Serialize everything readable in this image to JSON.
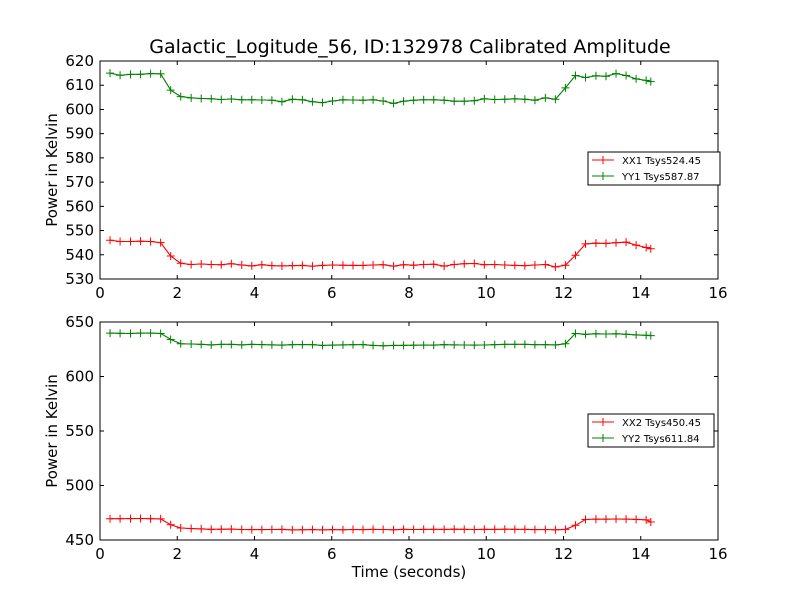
{
  "figure": {
    "title": "Galactic_Logitude_56, ID:132978 Calibrated Amplitude"
  },
  "chart_data": [
    {
      "type": "line",
      "title": "Galactic_Logitude_56, ID:132978 Calibrated Amplitude",
      "xlabel": "",
      "ylabel": "Power in Kelvin",
      "xlim": [
        0,
        16
      ],
      "ylim": [
        530,
        620
      ],
      "xticks": [
        0,
        2,
        4,
        6,
        8,
        10,
        12,
        14,
        16
      ],
      "yticks": [
        530,
        540,
        550,
        560,
        570,
        580,
        590,
        600,
        610,
        620
      ],
      "grid": false,
      "legend_position": "center-right",
      "x": [
        0.26,
        0.52,
        0.79,
        1.05,
        1.31,
        1.57,
        1.83,
        2.09,
        2.36,
        2.62,
        2.88,
        3.14,
        3.4,
        3.67,
        3.93,
        4.19,
        4.45,
        4.71,
        4.98,
        5.24,
        5.5,
        5.76,
        6.02,
        6.29,
        6.55,
        6.81,
        7.07,
        7.33,
        7.6,
        7.86,
        8.12,
        8.38,
        8.64,
        8.91,
        9.17,
        9.43,
        9.69,
        9.95,
        10.22,
        10.48,
        10.74,
        11.0,
        11.26,
        11.53,
        11.79,
        12.05,
        12.31,
        12.57,
        12.84,
        13.1,
        13.36,
        13.62,
        13.88,
        14.14,
        14.26
      ],
      "series": [
        {
          "name": "XX1 Tsys524.45",
          "color": "#ff0000",
          "values": [
            546,
            545.5,
            545.5,
            545.6,
            545.5,
            545,
            539.5,
            536.5,
            536,
            536.2,
            536,
            535.9,
            536.3,
            535.8,
            535.4,
            535.9,
            535.5,
            535.4,
            535.5,
            535.6,
            535.3,
            535.6,
            535.8,
            535.7,
            535.6,
            535.6,
            535.8,
            535.9,
            535.3,
            535.9,
            535.7,
            536,
            536.1,
            535.3,
            536,
            536.3,
            536.4,
            535.9,
            536,
            535.8,
            535.6,
            535.5,
            535.8,
            536,
            535,
            535.7,
            539.8,
            544.5,
            544.8,
            544.7,
            545,
            545.2,
            544,
            543,
            542.5
          ]
        },
        {
          "name": "YY1 Tsys587.87",
          "color": "#008000",
          "values": [
            615,
            614.1,
            614.5,
            614.5,
            614.8,
            614.7,
            608,
            605.3,
            604.8,
            604.5,
            604.4,
            604.1,
            604.3,
            604,
            604,
            603.9,
            603.8,
            603.2,
            604.2,
            604,
            603.2,
            602.8,
            603.5,
            604,
            603.9,
            603.8,
            604,
            603.5,
            602.5,
            603.4,
            603.8,
            604,
            604,
            603.8,
            603.4,
            603.4,
            603.6,
            604.4,
            604.1,
            604.2,
            604.4,
            604.2,
            603.8,
            604.8,
            604.2,
            608.9,
            614,
            613.2,
            613.9,
            613.7,
            614.8,
            614,
            612.6,
            612,
            611.5
          ]
        }
      ]
    },
    {
      "type": "line",
      "title": "",
      "xlabel": "Time (seconds)",
      "ylabel": "Power in Kelvin",
      "xlim": [
        0,
        16
      ],
      "ylim": [
        450,
        650
      ],
      "xticks": [
        0,
        2,
        4,
        6,
        8,
        10,
        12,
        14,
        16
      ],
      "yticks": [
        450,
        500,
        550,
        600,
        650
      ],
      "grid": false,
      "legend_position": "center-right",
      "x": [
        0.26,
        0.52,
        0.79,
        1.05,
        1.31,
        1.57,
        1.83,
        2.09,
        2.36,
        2.62,
        2.88,
        3.14,
        3.4,
        3.67,
        3.93,
        4.19,
        4.45,
        4.71,
        4.98,
        5.24,
        5.5,
        5.76,
        6.02,
        6.29,
        6.55,
        6.81,
        7.07,
        7.33,
        7.6,
        7.86,
        8.12,
        8.38,
        8.64,
        8.91,
        9.17,
        9.43,
        9.69,
        9.95,
        10.22,
        10.48,
        10.74,
        11.0,
        11.26,
        11.53,
        11.79,
        12.05,
        12.31,
        12.57,
        12.84,
        13.1,
        13.36,
        13.62,
        13.88,
        14.14,
        14.26
      ],
      "series": [
        {
          "name": "XX2 Tsys450.45",
          "color": "#ff0000",
          "values": [
            469.5,
            469.5,
            469.6,
            469.7,
            469.5,
            469.4,
            464,
            461,
            460.5,
            460.2,
            459.8,
            459.9,
            460,
            459.6,
            459.5,
            459.5,
            459.6,
            459.7,
            459.3,
            459.4,
            459.5,
            459.3,
            459.5,
            459.4,
            459.6,
            459.5,
            459.7,
            459.6,
            459.4,
            459.8,
            459.6,
            459.7,
            459.8,
            459.7,
            459.9,
            459.8,
            459.6,
            459.8,
            459.7,
            459.9,
            459.8,
            459.7,
            459.5,
            459.6,
            459.4,
            459.7,
            463.5,
            468.8,
            469.2,
            469.1,
            469.3,
            469.2,
            468.9,
            468.5,
            466.5
          ]
        },
        {
          "name": "YY2 Tsys611.84",
          "color": "#008000",
          "values": [
            639.8,
            639.6,
            639.5,
            639.8,
            639.8,
            639.5,
            634,
            630,
            629.8,
            629.5,
            629,
            629.5,
            629.5,
            629,
            629.5,
            629.3,
            629,
            628.8,
            629.2,
            629.3,
            629.2,
            628.5,
            628.8,
            629,
            629.2,
            629.2,
            628.5,
            628.2,
            628.5,
            628.6,
            628.7,
            628.8,
            628.8,
            629.2,
            629,
            628.9,
            628.8,
            628.9,
            629.2,
            629.5,
            629.5,
            629.5,
            629.2,
            629.2,
            629,
            630,
            639.5,
            638.7,
            639.2,
            639,
            639.2,
            638.8,
            638.2,
            637.8,
            637.5
          ]
        }
      ]
    }
  ]
}
